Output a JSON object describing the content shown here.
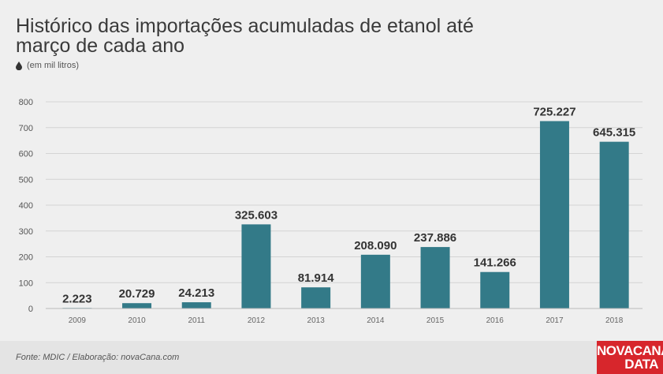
{
  "header": {
    "title": "Histórico das importações acumuladas de etanol até março de cada ano",
    "subtitle": "(em mil litros)",
    "subtitle_icon": "drop-icon"
  },
  "footer": {
    "source": "Fonte: MDIC / Elaboração: novaCana.com",
    "logo_line1": "NOVACANA",
    "logo_line2": "DATA",
    "logo_color": "#d7262c"
  },
  "chart_data": {
    "type": "bar",
    "categories": [
      "2009",
      "2010",
      "2011",
      "2012",
      "2013",
      "2014",
      "2015",
      "2016",
      "2017",
      "2018"
    ],
    "values": [
      2.223,
      20.729,
      24.213,
      325.603,
      81.914,
      208.09,
      237.886,
      141.266,
      725.227,
      645.315
    ],
    "data_labels": [
      "2.223",
      "20.729",
      "24.213",
      "325.603",
      "81.914",
      "208.090",
      "237.886",
      "141.266",
      "725.227",
      "645.315"
    ],
    "yticks": [
      "0",
      "100",
      "200",
      "300",
      "400",
      "500",
      "600",
      "700",
      "800"
    ],
    "ylim": [
      0,
      800
    ],
    "grid": true,
    "bar_color": "#337a88"
  }
}
